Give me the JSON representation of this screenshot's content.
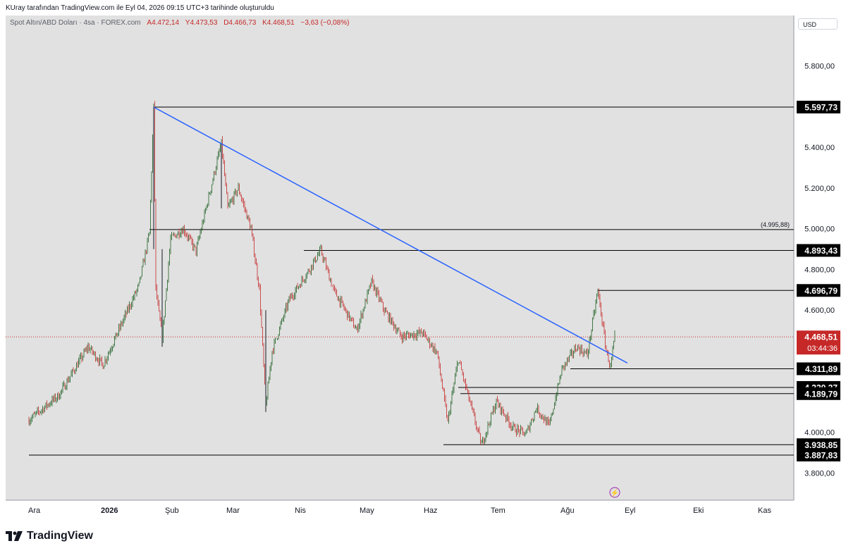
{
  "header": {
    "credit": "KUray tarafından TradingView.com ile Eyl 04, 2026 09:15 UTC+3 tarihinde oluşturuldu"
  },
  "legend": {
    "symbol": "Spot Altın/ABD Doları · 4sa · FOREX.com",
    "open": "A4.472,14",
    "high": "Y4.473,53",
    "low": "D4.466,73",
    "close": "K4.468,51",
    "change": "−3,63 (−0,08%)"
  },
  "currency": "USD",
  "brand": "TradingView",
  "colors": {
    "plot_background": "#e1e1e1",
    "up_candle": "#1b5e20",
    "down_candle": "#c62828",
    "trendline": "#2962ff",
    "level_line": "#000000",
    "price_badge": "#c62828"
  },
  "chart_data": {
    "type": "candlestick",
    "title": "Spot Altın/ABD Doları · 4sa · FOREX.com",
    "y_axis": {
      "ticks": [
        3800,
        4000,
        4200,
        4400,
        4600,
        4800,
        5000,
        5200,
        5400,
        5600,
        5800
      ],
      "tick_labels_shown": [
        "3.800,00",
        "4.000,00",
        "4.600,00",
        "4.800,00",
        "5.000,00",
        "5.200,00",
        "5.400,00",
        "5.800,00"
      ],
      "range": [
        3700,
        5900
      ]
    },
    "x_axis": {
      "labels": [
        "Ara",
        "2026",
        "Şub",
        "Mar",
        "Nis",
        "May",
        "Haz",
        "Tem",
        "Ağu",
        "Eyl",
        "Eki",
        "Kas"
      ],
      "bold": [
        "2026"
      ]
    },
    "series_close_path": [
      [
        "2025-12-01",
        4060
      ],
      [
        "2025-12-15",
        4180
      ],
      [
        "2025-12-29",
        4420
      ],
      [
        "2026-01-05",
        4330
      ],
      [
        "2026-01-15",
        4560
      ],
      [
        "2026-01-22",
        4720
      ],
      [
        "2026-01-27",
        4980
      ],
      [
        "2026-01-29",
        5597.73
      ],
      [
        "2026-01-30",
        4700
      ],
      [
        "2026-02-02",
        4460
      ],
      [
        "2026-02-06",
        4950
      ],
      [
        "2026-02-12",
        5000
      ],
      [
        "2026-02-18",
        4890
      ],
      [
        "2026-02-25",
        5200
      ],
      [
        "2026-03-02",
        5420
      ],
      [
        "2026-03-05",
        5100
      ],
      [
        "2026-03-10",
        5200
      ],
      [
        "2026-03-16",
        5000
      ],
      [
        "2026-03-20",
        4700
      ],
      [
        "2026-03-23",
        4130
      ],
      [
        "2026-03-26",
        4400
      ],
      [
        "2026-04-03",
        4650
      ],
      [
        "2026-04-12",
        4790
      ],
      [
        "2026-04-18",
        4893.43
      ],
      [
        "2026-04-24",
        4700
      ],
      [
        "2026-05-05",
        4500
      ],
      [
        "2026-05-12",
        4740
      ],
      [
        "2026-05-18",
        4600
      ],
      [
        "2026-05-26",
        4470
      ],
      [
        "2026-06-05",
        4490
      ],
      [
        "2026-06-12",
        4390
      ],
      [
        "2026-06-17",
        4050
      ],
      [
        "2026-06-22",
        4360
      ],
      [
        "2026-06-30",
        4050
      ],
      [
        "2026-07-03",
        3938.85
      ],
      [
        "2026-07-10",
        4150
      ],
      [
        "2026-07-18",
        4020
      ],
      [
        "2026-07-24",
        3990
      ],
      [
        "2026-07-29",
        4120
      ],
      [
        "2026-08-04",
        4030
      ],
      [
        "2026-08-10",
        4310
      ],
      [
        "2026-08-17",
        4420
      ],
      [
        "2026-08-22",
        4380
      ],
      [
        "2026-08-27",
        4696.79
      ],
      [
        "2026-08-31",
        4400
      ],
      [
        "2026-09-02",
        4320
      ],
      [
        "2026-09-04",
        4468.51
      ]
    ],
    "trendline": {
      "from": [
        "2026-01-29",
        5597.73
      ],
      "to": [
        "2026-09-10",
        4340
      ]
    },
    "levels": [
      {
        "value": 5597.73,
        "label": "5.597,73",
        "from": "2026-01-29"
      },
      {
        "value": 4995.88,
        "label": "(4.995,88)",
        "from": "2026-01-27"
      },
      {
        "value": 4893.43,
        "label": "4.893,43",
        "from": "2026-04-10"
      },
      {
        "value": 4696.79,
        "label": "4.696,79",
        "from": "2026-08-27"
      },
      {
        "value": 4311.89,
        "label": "4.311,89",
        "from": "2026-08-14"
      },
      {
        "value": 4220.27,
        "label": "4.220,27",
        "from": "2026-06-22"
      },
      {
        "value": 4189.79,
        "label": "4.189,79",
        "from": "2026-06-23"
      },
      {
        "value": 3938.85,
        "label": "3.938,85",
        "from": "2026-06-15"
      },
      {
        "value": 3887.83,
        "label": "3.887,83",
        "from": "2025-12-01"
      }
    ],
    "current_price": {
      "value": 4468.51,
      "label": "4.468,51",
      "countdown": "03:44:36"
    }
  }
}
